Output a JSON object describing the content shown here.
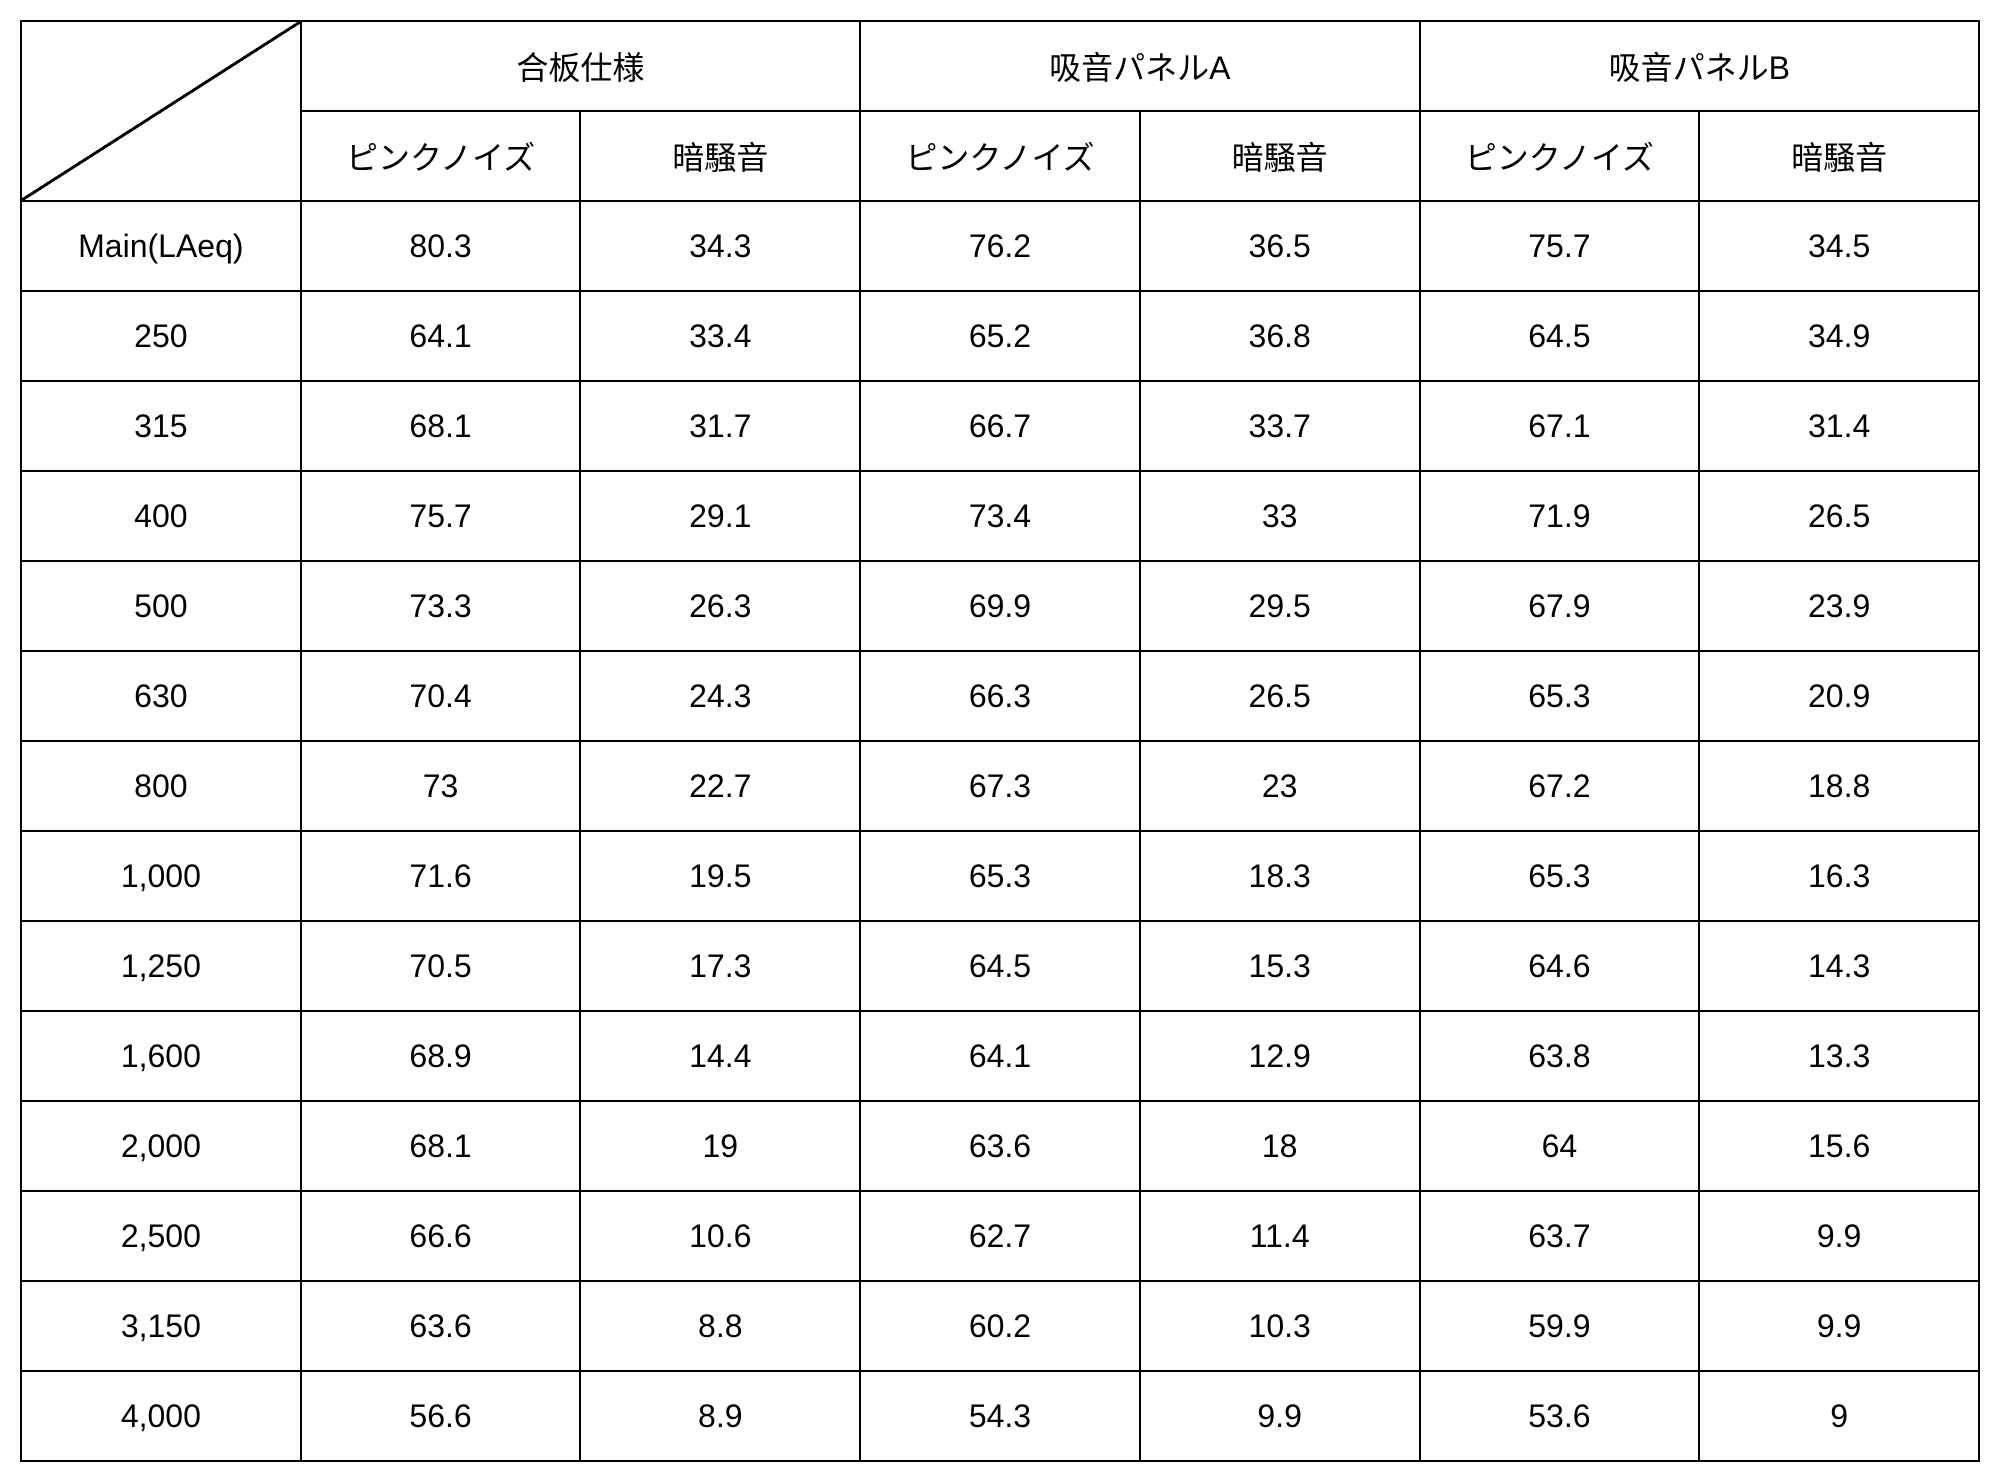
{
  "table": {
    "type": "table",
    "background_color": "#ffffff",
    "border_color": "#000000",
    "border_width": 2,
    "text_color": "#000000",
    "font_size_pt": 24,
    "column_widths_pct": [
      14.3,
      14.3,
      14.3,
      14.3,
      14.3,
      14.3,
      14.3
    ],
    "header_groups": [
      {
        "label": "合板仕様"
      },
      {
        "label": "吸音パネルA"
      },
      {
        "label": "吸音パネルB"
      }
    ],
    "sub_headers": [
      "ピンクノイズ",
      "暗騒音",
      "ピンクノイズ",
      "暗騒音",
      "ピンクノイズ",
      "暗騒音"
    ],
    "row_labels": [
      "Main(LAeq)",
      "250",
      "315",
      "400",
      "500",
      "630",
      "800",
      "1,000",
      "1,250",
      "1,600",
      "2,000",
      "2,500",
      "3,150",
      "4,000"
    ],
    "rows": [
      [
        "80.3",
        "34.3",
        "76.2",
        "36.5",
        "75.7",
        "34.5"
      ],
      [
        "64.1",
        "33.4",
        "65.2",
        "36.8",
        "64.5",
        "34.9"
      ],
      [
        "68.1",
        "31.7",
        "66.7",
        "33.7",
        "67.1",
        "31.4"
      ],
      [
        "75.7",
        "29.1",
        "73.4",
        "33",
        "71.9",
        "26.5"
      ],
      [
        "73.3",
        "26.3",
        "69.9",
        "29.5",
        "67.9",
        "23.9"
      ],
      [
        "70.4",
        "24.3",
        "66.3",
        "26.5",
        "65.3",
        "20.9"
      ],
      [
        "73",
        "22.7",
        "67.3",
        "23",
        "67.2",
        "18.8"
      ],
      [
        "71.6",
        "19.5",
        "65.3",
        "18.3",
        "65.3",
        "16.3"
      ],
      [
        "70.5",
        "17.3",
        "64.5",
        "15.3",
        "64.6",
        "14.3"
      ],
      [
        "68.9",
        "14.4",
        "64.1",
        "12.9",
        "63.8",
        "13.3"
      ],
      [
        "68.1",
        "19",
        "63.6",
        "18",
        "64",
        "15.6"
      ],
      [
        "66.6",
        "10.6",
        "62.7",
        "11.4",
        "63.7",
        "9.9"
      ],
      [
        "63.6",
        "8.8",
        "60.2",
        "10.3",
        "59.9",
        "9.9"
      ],
      [
        "56.6",
        "8.9",
        "54.3",
        "9.9",
        "53.6",
        "9"
      ]
    ]
  }
}
